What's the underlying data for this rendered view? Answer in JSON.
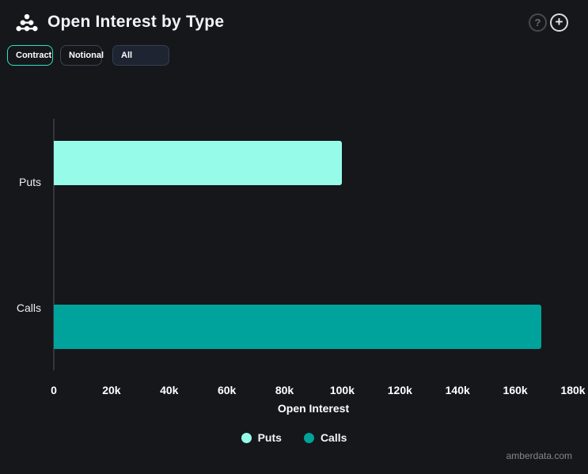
{
  "header": {
    "title": "Open Interest by Type",
    "help_icon_glyph": "?",
    "add_icon_glyph": "+"
  },
  "toolbar": {
    "contract_label": "Contract",
    "notional_label": "Notional",
    "all_filter_value": "All"
  },
  "chart_data": {
    "type": "bar",
    "orientation": "horizontal",
    "title": "Open Interest by Type",
    "categories": [
      "Puts",
      "Calls"
    ],
    "series": [
      {
        "name": "Puts",
        "color": "#97fbea",
        "values": [
          100000,
          0
        ]
      },
      {
        "name": "Calls",
        "color": "#00a39b",
        "values": [
          0,
          169000
        ]
      }
    ],
    "xlabel": "Open Interest",
    "xlim": [
      0,
      180000
    ],
    "x_ticks": [
      "0",
      "20k",
      "40k",
      "60k",
      "80k",
      "100k",
      "120k",
      "140k",
      "160k",
      "180k"
    ],
    "grid": false,
    "legend_position": "bottom"
  },
  "footer": {
    "watermark": "amberdata.com"
  },
  "colors": {
    "background": "#15171a",
    "accent_teal": "#2fe1c5",
    "puts_bar": "#97fbea",
    "calls_bar": "#00a39b"
  }
}
